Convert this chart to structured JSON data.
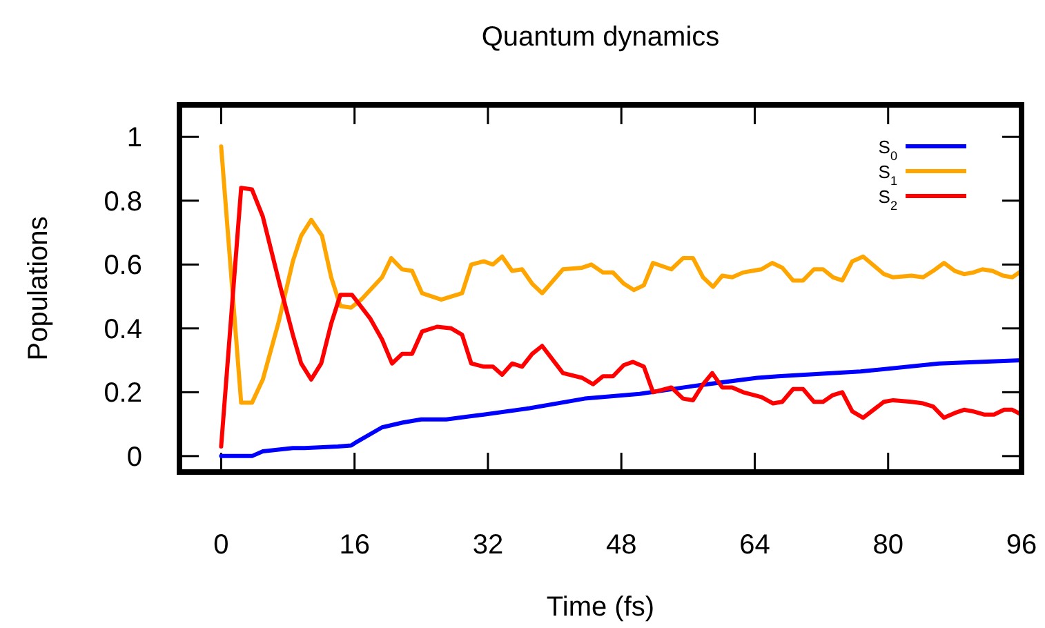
{
  "chart_data": {
    "type": "line",
    "title": "Quantum dynamics",
    "xlabel": "Time (fs)",
    "ylabel": "Populations",
    "xlim": [
      -5,
      96
    ],
    "ylim": [
      -0.05,
      1.1
    ],
    "xticks": [
      0,
      16,
      32,
      48,
      64,
      80,
      96
    ],
    "yticks": [
      0,
      0.2,
      0.4,
      0.6,
      0.8,
      1
    ],
    "grid": false,
    "legend": "top right",
    "marker": "none",
    "line_style": "solid",
    "series": [
      {
        "name": "S$_{0}$",
        "color": "#0000ff",
        "x": [
          0,
          3.7,
          5,
          8.6,
          10,
          14,
          15.6,
          16.3,
          19.3,
          21.8,
          24,
          27,
          30,
          31.5,
          37,
          43.6,
          50.2,
          56.8,
          64.3,
          66.8,
          76.7,
          86.1,
          96
        ],
        "values": [
          0,
          0,
          0.015,
          0.025,
          0.025,
          0.03,
          0.033,
          0.045,
          0.09,
          0.105,
          0.115,
          0.115,
          0.125,
          0.13,
          0.15,
          0.18,
          0.195,
          0.22,
          0.245,
          0.25,
          0.265,
          0.29,
          0.3
        ]
      },
      {
        "name": "S$_{1}$",
        "color": "#ffa500",
        "x": [
          0,
          2.4,
          3.7,
          5,
          6.9,
          8.6,
          9.6,
          10.8,
          12.1,
          13.2,
          14.3,
          15.6,
          16.8,
          19.3,
          20.4,
          21.7,
          22.9,
          24.1,
          26.4,
          28.9,
          30,
          31.5,
          32.6,
          33.7,
          34.9,
          36.1,
          37.3,
          38.5,
          41,
          43.3,
          44.4,
          45.8,
          47,
          48.3,
          49.5,
          50.7,
          51.8,
          54,
          55.4,
          56.6,
          57.8,
          59,
          60.1,
          61.3,
          62.6,
          63.7,
          64.8,
          66.1,
          67.3,
          68.6,
          69.8,
          71.1,
          72.2,
          73.4,
          74.5,
          75.7,
          77,
          79.5,
          80.6,
          82.8,
          84.2,
          85.4,
          86.7,
          88,
          89.1,
          90.2,
          91.3,
          92.5,
          93.8,
          94.9,
          96
        ],
        "values": [
          0.97,
          0.167,
          0.167,
          0.24,
          0.42,
          0.61,
          0.69,
          0.74,
          0.69,
          0.56,
          0.47,
          0.465,
          0.49,
          0.56,
          0.62,
          0.585,
          0.58,
          0.51,
          0.49,
          0.51,
          0.6,
          0.61,
          0.6,
          0.625,
          0.58,
          0.585,
          0.54,
          0.51,
          0.585,
          0.59,
          0.6,
          0.575,
          0.575,
          0.54,
          0.52,
          0.535,
          0.605,
          0.585,
          0.62,
          0.62,
          0.56,
          0.53,
          0.565,
          0.56,
          0.575,
          0.58,
          0.585,
          0.605,
          0.59,
          0.55,
          0.55,
          0.585,
          0.585,
          0.56,
          0.55,
          0.61,
          0.625,
          0.57,
          0.56,
          0.565,
          0.56,
          0.58,
          0.605,
          0.58,
          0.57,
          0.575,
          0.585,
          0.58,
          0.565,
          0.56,
          0.58
        ]
      },
      {
        "name": "S$_{2}$",
        "color": "#ff0000",
        "x": [
          0,
          2.4,
          3.7,
          5,
          7,
          8.6,
          9.6,
          10.8,
          12,
          13.2,
          14.3,
          15.7,
          17.9,
          19.3,
          20.5,
          21.7,
          22.9,
          24.1,
          25.9,
          27.6,
          28.9,
          30,
          31.5,
          32.6,
          33.7,
          34.9,
          36.1,
          37.3,
          38.5,
          41,
          43.3,
          44.6,
          45.8,
          47,
          48.3,
          49.4,
          50.7,
          51.8,
          54,
          55.4,
          56.6,
          57.8,
          58.9,
          60.1,
          61.3,
          62.6,
          64.8,
          66.2,
          67.3,
          68.6,
          69.8,
          71.1,
          72.2,
          73.3,
          74.5,
          75.7,
          77,
          79.5,
          80.6,
          82.8,
          84.2,
          85.4,
          86.7,
          88,
          89.1,
          90.2,
          91.5,
          92.7,
          93.9,
          94.9,
          96
        ],
        "values": [
          0.03,
          0.84,
          0.835,
          0.75,
          0.54,
          0.38,
          0.29,
          0.24,
          0.29,
          0.415,
          0.505,
          0.505,
          0.43,
          0.365,
          0.29,
          0.32,
          0.32,
          0.39,
          0.405,
          0.4,
          0.38,
          0.29,
          0.28,
          0.28,
          0.255,
          0.29,
          0.28,
          0.32,
          0.345,
          0.26,
          0.245,
          0.225,
          0.25,
          0.25,
          0.285,
          0.295,
          0.28,
          0.2,
          0.215,
          0.18,
          0.175,
          0.225,
          0.26,
          0.215,
          0.215,
          0.2,
          0.185,
          0.165,
          0.17,
          0.21,
          0.21,
          0.17,
          0.17,
          0.19,
          0.2,
          0.14,
          0.12,
          0.17,
          0.175,
          0.17,
          0.165,
          0.155,
          0.12,
          0.135,
          0.145,
          0.14,
          0.13,
          0.13,
          0.145,
          0.145,
          0.13
        ]
      }
    ]
  }
}
